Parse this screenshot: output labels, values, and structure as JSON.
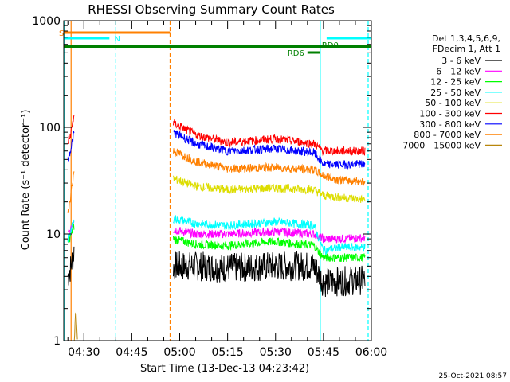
{
  "chart_data": {
    "type": "line",
    "title": "RHESSI Observing Summary Count Rates",
    "ylabel": "Count Rate (s⁻¹ detector⁻¹)",
    "xlabel": "Start Time (13-Dec-13 04:23:42)",
    "y_scale": "log",
    "ylim": [
      1,
      1000
    ],
    "xlim": [
      "04:23:42",
      "06:00:00"
    ],
    "x_ticks": [
      "04:30",
      "04:45",
      "05:00",
      "05:15",
      "05:30",
      "05:45",
      "06:00"
    ],
    "y_ticks": [
      "1",
      "10",
      "100",
      "1000"
    ],
    "legend_header": [
      "Det 1,3,4,5,6,9,",
      "FDecim 1, Att 1"
    ],
    "legend_position": "right",
    "timestamp": "25-Oct-2021 08:57",
    "series": [
      {
        "name": "3 - 6 keV",
        "color": "#000000",
        "values": [
          [
            "04:25",
            4
          ],
          [
            "04:26",
            5
          ],
          [
            "04:27",
            7
          ],
          [
            "04:58",
            5
          ],
          [
            "05:05",
            5.0
          ],
          [
            "05:15",
            4.8
          ],
          [
            "05:30",
            5.0
          ],
          [
            "05:42",
            5.0
          ],
          [
            "05:45",
            3.5
          ],
          [
            "05:50",
            3.6
          ],
          [
            "05:58",
            3.7
          ]
        ]
      },
      {
        "name": "6 - 12 keV",
        "color": "#ff00ff",
        "values": [
          [
            "04:25",
            10
          ],
          [
            "04:26",
            11
          ],
          [
            "04:27",
            14
          ],
          [
            "04:58",
            11
          ],
          [
            "05:05",
            10
          ],
          [
            "05:15",
            10
          ],
          [
            "05:30",
            10.5
          ],
          [
            "05:42",
            10
          ],
          [
            "05:45",
            9
          ],
          [
            "05:50",
            9
          ],
          [
            "05:58",
            9.2
          ]
        ]
      },
      {
        "name": "12 - 25 keV",
        "color": "#00ff00",
        "values": [
          [
            "04:25",
            8
          ],
          [
            "04:26",
            10
          ],
          [
            "04:27",
            12
          ],
          [
            "04:58",
            9
          ],
          [
            "05:05",
            8
          ],
          [
            "05:15",
            7.8
          ],
          [
            "05:30",
            8.5
          ],
          [
            "05:42",
            7.8
          ],
          [
            "05:45",
            6
          ],
          [
            "05:50",
            6
          ],
          [
            "05:58",
            6
          ]
        ]
      },
      {
        "name": "25 - 50 keV",
        "color": "#00ffff",
        "values": [
          [
            "04:25",
            9
          ],
          [
            "04:26",
            11
          ],
          [
            "04:27",
            13
          ],
          [
            "04:58",
            14
          ],
          [
            "05:05",
            12.5
          ],
          [
            "05:15",
            12
          ],
          [
            "05:30",
            13
          ],
          [
            "05:42",
            12
          ],
          [
            "05:45",
            7
          ],
          [
            "05:50",
            7.5
          ],
          [
            "05:58",
            7.5
          ]
        ]
      },
      {
        "name": "50 - 100 keV",
        "color": "#dddd00",
        "values": [
          [
            "04:58",
            33
          ],
          [
            "05:05",
            28
          ],
          [
            "05:15",
            26
          ],
          [
            "05:30",
            27
          ],
          [
            "05:42",
            26
          ],
          [
            "05:45",
            23
          ],
          [
            "05:50",
            22
          ],
          [
            "05:58",
            21
          ]
        ]
      },
      {
        "name": "100 - 300 keV",
        "color": "#ff0000",
        "values": [
          [
            "04:25",
            70
          ],
          [
            "04:26",
            90
          ],
          [
            "04:27",
            135
          ],
          [
            "04:58",
            110
          ],
          [
            "05:05",
            85
          ],
          [
            "05:15",
            72
          ],
          [
            "05:30",
            78
          ],
          [
            "05:42",
            70
          ],
          [
            "05:45",
            60
          ],
          [
            "05:50",
            60
          ],
          [
            "05:58",
            60
          ]
        ]
      },
      {
        "name": "300 - 800 keV",
        "color": "#0000ff",
        "values": [
          [
            "04:25",
            50
          ],
          [
            "04:26",
            65
          ],
          [
            "04:27",
            90
          ],
          [
            "04:58",
            90
          ],
          [
            "05:05",
            70
          ],
          [
            "05:15",
            60
          ],
          [
            "05:30",
            63
          ],
          [
            "05:42",
            58
          ],
          [
            "05:45",
            45
          ],
          [
            "05:50",
            45
          ],
          [
            "05:58",
            45
          ]
        ]
      },
      {
        "name": "800 - 7000 keV",
        "color": "#ff8000",
        "values": [
          [
            "04:25",
            15
          ],
          [
            "04:26",
            25
          ],
          [
            "04:27",
            40
          ],
          [
            "04:58",
            60
          ],
          [
            "05:05",
            48
          ],
          [
            "05:15",
            41
          ],
          [
            "05:30",
            42
          ],
          [
            "05:42",
            40
          ],
          [
            "05:45",
            35
          ],
          [
            "05:50",
            32
          ],
          [
            "05:58",
            31
          ]
        ]
      },
      {
        "name": "7000 - 15000 keV",
        "color": "#b8860b",
        "values": [
          [
            "04:27",
            1
          ],
          [
            "04:27.5",
            2
          ],
          [
            "04:28",
            1
          ]
        ]
      }
    ],
    "annotations": {
      "attenuator_bars": [
        {
          "label": "S",
          "color": "#ff8000",
          "start": "04:23:42",
          "end": "04:57"
        },
        {
          "label": "N",
          "color": "#00ffff",
          "start": "04:23:42",
          "end": "04:38"
        },
        {
          "label": "",
          "color": "#00ffff",
          "start": "05:46",
          "end": "06:00"
        },
        {
          "label": "",
          "color": "#008000",
          "start": "04:23:42",
          "end": "06:00"
        }
      ],
      "decimation_markers": [
        {
          "label": "RD6",
          "color": "#008000",
          "start": "05:40",
          "end": "05:44"
        },
        {
          "label": "RD0",
          "color": "#008000",
          "time": "05:44"
        }
      ],
      "vertical_lines": [
        {
          "time": "04:24",
          "color": "#00ffff",
          "style": "solid"
        },
        {
          "time": "04:26",
          "color": "#ff8000",
          "style": "solid"
        },
        {
          "time": "04:40",
          "color": "#00ffff",
          "style": "dashed"
        },
        {
          "time": "04:57",
          "color": "#ff8000",
          "style": "dashed"
        },
        {
          "time": "05:44",
          "color": "#00ffff",
          "style": "solid"
        },
        {
          "time": "05:59",
          "color": "#00ffff",
          "style": "dashed"
        }
      ]
    }
  }
}
